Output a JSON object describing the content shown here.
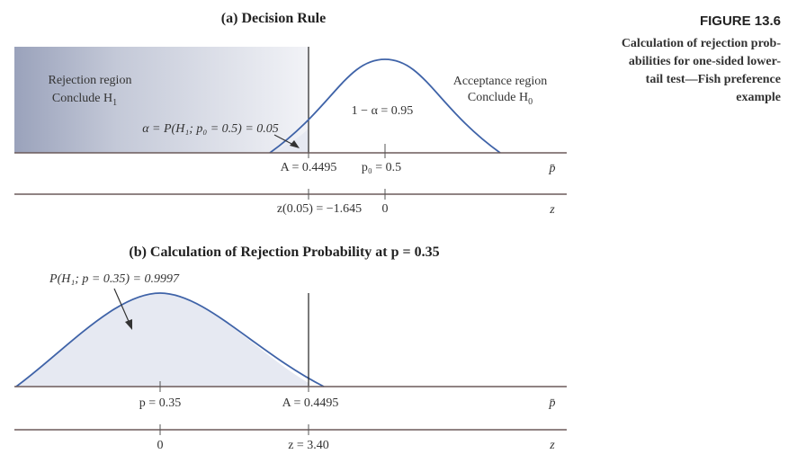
{
  "caption": {
    "figure_number": "FIGURE 13.6",
    "lines": [
      "Calculation of rejection prob-",
      "abilities for one-sided lower-",
      "tail test—Fish preference",
      "example"
    ]
  },
  "panel_a": {
    "title": "(a) Decision Rule",
    "rejection_region": "Rejection region",
    "rejection_conclude": "Conclude H",
    "rejection_conclude_sub": "1",
    "acceptance_region": "Acceptance region",
    "acceptance_conclude": "Conclude H",
    "acceptance_conclude_sub": "0",
    "alpha_annotation": "α = P(H₁; p₀ = 0.5) = 0.05",
    "one_minus_alpha": "1 − α = 0.95",
    "tick_A": "A = 0.4495",
    "tick_p0": "p₀ = 0.5",
    "axis_pbar": "p̄",
    "tick_z": "z(0.05) = −1.645",
    "tick_zero": "0",
    "axis_z": "z"
  },
  "panel_b": {
    "title": "(b) Calculation of Rejection Probability at p = 0.35",
    "prob_annotation": "P(H₁; p = 0.35) = 0.9997",
    "tick_p": "p = 0.35",
    "tick_A": "A = 0.4495",
    "axis_pbar": "p̄",
    "tick_zero": "0",
    "tick_z": "z = 3.40",
    "axis_z": "z"
  },
  "colors": {
    "curve": "#3f63a8",
    "rejection_shade": "#b8bfd2",
    "tail_shade": "#e6e9f2",
    "axis": "#6b5a5a"
  }
}
